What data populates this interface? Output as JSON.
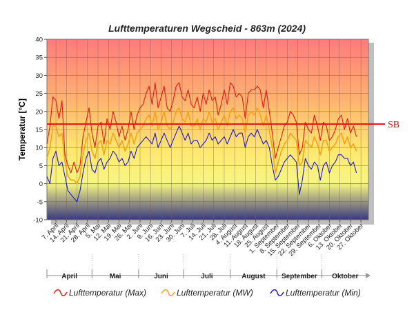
{
  "chart_data": {
    "type": "line",
    "title": "Lufttemperaturen Wegscheid - 863m (2024)",
    "ylabel": "Temperatur [°C]",
    "ylim": [
      -10,
      40
    ],
    "yticks": [
      -10,
      -5,
      0,
      5,
      10,
      15,
      20,
      25,
      30,
      35,
      40
    ],
    "x_start": "2024-04-01",
    "x_end": "2024-10-31",
    "x_tick_labels": [
      "7. April",
      "14. April",
      "21. April",
      "28. April",
      "5. Mai",
      "12. Mai",
      "19. Mai",
      "26. Mai",
      "2. Juni",
      "9. Juni",
      "16. Juni",
      "23. Juni",
      "30. Juni",
      "7. Juli",
      "14. Juli",
      "21. Juli",
      "28. Juli",
      "4. August",
      "11. August",
      "18. August",
      "25. August",
      "1. September",
      "8. September",
      "15. September",
      "22. September",
      "29. September",
      "6. Oktober",
      "13. Oktober",
      "20. Oktober",
      "27. Oktober"
    ],
    "months": [
      "April",
      "Mai",
      "Juni",
      "Juli",
      "August",
      "September",
      "Oktober"
    ],
    "reference_line": {
      "label": "SB",
      "value": 16.5,
      "color": "#e01010"
    },
    "background_gradient": [
      "#ff7b7b",
      "#ffb070",
      "#ffe870",
      "#fafa80",
      "#383880"
    ],
    "grid": true,
    "series": [
      {
        "name": "Lufttemperatur (Max)",
        "color": "#e41a1a",
        "values": [
          [
            0,
            11
          ],
          [
            2,
            16
          ],
          [
            4,
            24
          ],
          [
            6,
            23
          ],
          [
            8,
            18
          ],
          [
            10,
            23
          ],
          [
            12,
            8
          ],
          [
            14,
            5
          ],
          [
            16,
            3
          ],
          [
            18,
            6
          ],
          [
            20,
            3
          ],
          [
            22,
            5
          ],
          [
            24,
            13
          ],
          [
            26,
            17
          ],
          [
            28,
            21
          ],
          [
            30,
            14
          ],
          [
            32,
            10
          ],
          [
            34,
            16
          ],
          [
            36,
            17
          ],
          [
            38,
            11
          ],
          [
            40,
            18
          ],
          [
            42,
            15
          ],
          [
            44,
            20
          ],
          [
            46,
            17
          ],
          [
            48,
            13
          ],
          [
            50,
            16
          ],
          [
            52,
            12
          ],
          [
            54,
            15
          ],
          [
            56,
            20
          ],
          [
            58,
            15
          ],
          [
            60,
            19
          ],
          [
            62,
            21
          ],
          [
            64,
            22
          ],
          [
            66,
            25
          ],
          [
            68,
            27
          ],
          [
            70,
            22
          ],
          [
            72,
            28
          ],
          [
            74,
            21
          ],
          [
            76,
            24
          ],
          [
            78,
            27
          ],
          [
            80,
            21
          ],
          [
            82,
            20
          ],
          [
            84,
            23
          ],
          [
            86,
            27
          ],
          [
            88,
            28
          ],
          [
            90,
            24
          ],
          [
            92,
            23
          ],
          [
            94,
            26
          ],
          [
            96,
            22
          ],
          [
            98,
            21
          ],
          [
            100,
            24
          ],
          [
            102,
            20
          ],
          [
            104,
            25
          ],
          [
            106,
            22
          ],
          [
            108,
            26
          ],
          [
            110,
            23
          ],
          [
            112,
            24
          ],
          [
            114,
            19
          ],
          [
            116,
            22
          ],
          [
            118,
            26
          ],
          [
            120,
            22
          ],
          [
            122,
            28
          ],
          [
            124,
            27
          ],
          [
            126,
            24
          ],
          [
            128,
            25
          ],
          [
            130,
            24
          ],
          [
            132,
            18
          ],
          [
            134,
            25
          ],
          [
            136,
            26
          ],
          [
            138,
            26
          ],
          [
            140,
            27
          ],
          [
            142,
            26
          ],
          [
            144,
            21
          ],
          [
            146,
            26
          ],
          [
            148,
            20
          ],
          [
            150,
            14
          ],
          [
            152,
            7
          ],
          [
            154,
            10
          ],
          [
            156,
            13
          ],
          [
            158,
            16
          ],
          [
            160,
            17
          ],
          [
            162,
            20
          ],
          [
            164,
            19
          ],
          [
            166,
            17
          ],
          [
            168,
            8
          ],
          [
            170,
            10
          ],
          [
            172,
            17
          ],
          [
            174,
            15
          ],
          [
            176,
            14
          ],
          [
            178,
            19
          ],
          [
            180,
            16
          ],
          [
            182,
            12
          ],
          [
            184,
            17
          ],
          [
            186,
            16
          ],
          [
            188,
            12
          ],
          [
            190,
            13
          ],
          [
            192,
            15
          ],
          [
            194,
            18
          ],
          [
            196,
            19
          ],
          [
            198,
            15
          ],
          [
            200,
            18
          ],
          [
            202,
            14
          ],
          [
            204,
            16
          ],
          [
            206,
            13
          ]
        ]
      },
      {
        "name": "Lufttemperatur (MW)",
        "color": "#f7a21a",
        "values": [
          [
            0,
            7
          ],
          [
            2,
            10
          ],
          [
            4,
            16
          ],
          [
            6,
            16
          ],
          [
            8,
            13
          ],
          [
            10,
            14
          ],
          [
            12,
            6
          ],
          [
            14,
            2
          ],
          [
            16,
            1
          ],
          [
            18,
            1
          ],
          [
            20,
            0
          ],
          [
            22,
            2
          ],
          [
            24,
            8
          ],
          [
            26,
            12
          ],
          [
            28,
            14
          ],
          [
            30,
            9
          ],
          [
            32,
            7
          ],
          [
            34,
            11
          ],
          [
            36,
            12
          ],
          [
            38,
            8
          ],
          [
            40,
            12
          ],
          [
            42,
            11
          ],
          [
            44,
            14
          ],
          [
            46,
            12
          ],
          [
            48,
            10
          ],
          [
            50,
            12
          ],
          [
            52,
            9
          ],
          [
            54,
            11
          ],
          [
            56,
            14
          ],
          [
            58,
            11
          ],
          [
            60,
            14
          ],
          [
            62,
            15
          ],
          [
            64,
            16
          ],
          [
            66,
            18
          ],
          [
            68,
            19
          ],
          [
            70,
            16
          ],
          [
            72,
            20
          ],
          [
            74,
            15
          ],
          [
            76,
            17
          ],
          [
            78,
            20
          ],
          [
            80,
            16
          ],
          [
            82,
            15
          ],
          [
            84,
            17
          ],
          [
            86,
            20
          ],
          [
            88,
            21
          ],
          [
            90,
            18
          ],
          [
            92,
            17
          ],
          [
            94,
            20
          ],
          [
            96,
            16
          ],
          [
            98,
            16
          ],
          [
            100,
            18
          ],
          [
            102,
            15
          ],
          [
            104,
            18
          ],
          [
            106,
            17
          ],
          [
            108,
            20
          ],
          [
            110,
            17
          ],
          [
            112,
            18
          ],
          [
            114,
            15
          ],
          [
            116,
            17
          ],
          [
            118,
            19
          ],
          [
            120,
            16
          ],
          [
            122,
            20
          ],
          [
            124,
            21
          ],
          [
            126,
            18
          ],
          [
            128,
            19
          ],
          [
            130,
            18
          ],
          [
            132,
            14
          ],
          [
            134,
            19
          ],
          [
            136,
            20
          ],
          [
            138,
            19
          ],
          [
            140,
            21
          ],
          [
            142,
            19
          ],
          [
            144,
            16
          ],
          [
            146,
            19
          ],
          [
            148,
            15
          ],
          [
            150,
            10
          ],
          [
            152,
            3
          ],
          [
            154,
            6
          ],
          [
            156,
            9
          ],
          [
            158,
            11
          ],
          [
            160,
            12
          ],
          [
            162,
            14
          ],
          [
            164,
            13
          ],
          [
            166,
            12
          ],
          [
            168,
            5
          ],
          [
            170,
            6
          ],
          [
            172,
            12
          ],
          [
            174,
            11
          ],
          [
            176,
            10
          ],
          [
            178,
            13
          ],
          [
            180,
            11
          ],
          [
            182,
            8
          ],
          [
            184,
            12
          ],
          [
            186,
            12
          ],
          [
            188,
            9
          ],
          [
            190,
            10
          ],
          [
            192,
            11
          ],
          [
            194,
            13
          ],
          [
            196,
            14
          ],
          [
            198,
            11
          ],
          [
            200,
            13
          ],
          [
            202,
            10
          ],
          [
            204,
            11
          ],
          [
            206,
            9
          ]
        ]
      },
      {
        "name": "Lufttemperatur (Min)",
        "color": "#1a1ad0",
        "values": [
          [
            0,
            2
          ],
          [
            2,
            0
          ],
          [
            4,
            7
          ],
          [
            6,
            9
          ],
          [
            8,
            5
          ],
          [
            10,
            6
          ],
          [
            12,
            2
          ],
          [
            14,
            -2
          ],
          [
            16,
            -3
          ],
          [
            18,
            -4
          ],
          [
            20,
            -5
          ],
          [
            22,
            -2
          ],
          [
            24,
            3
          ],
          [
            26,
            7
          ],
          [
            28,
            9
          ],
          [
            30,
            4
          ],
          [
            32,
            3
          ],
          [
            34,
            6
          ],
          [
            36,
            7
          ],
          [
            38,
            4
          ],
          [
            40,
            6
          ],
          [
            42,
            7
          ],
          [
            44,
            9
          ],
          [
            46,
            8
          ],
          [
            48,
            6
          ],
          [
            50,
            7
          ],
          [
            52,
            5
          ],
          [
            54,
            6
          ],
          [
            56,
            9
          ],
          [
            58,
            7
          ],
          [
            60,
            10
          ],
          [
            62,
            11
          ],
          [
            64,
            12
          ],
          [
            66,
            13
          ],
          [
            68,
            12
          ],
          [
            70,
            11
          ],
          [
            72,
            14
          ],
          [
            74,
            10
          ],
          [
            76,
            12
          ],
          [
            78,
            14
          ],
          [
            80,
            12
          ],
          [
            82,
            10
          ],
          [
            84,
            12
          ],
          [
            86,
            14
          ],
          [
            88,
            16
          ],
          [
            90,
            14
          ],
          [
            92,
            12
          ],
          [
            94,
            14
          ],
          [
            96,
            11
          ],
          [
            98,
            12
          ],
          [
            100,
            12
          ],
          [
            102,
            10
          ],
          [
            104,
            11
          ],
          [
            106,
            12
          ],
          [
            108,
            14
          ],
          [
            110,
            12
          ],
          [
            112,
            13
          ],
          [
            114,
            11
          ],
          [
            116,
            12
          ],
          [
            118,
            13
          ],
          [
            120,
            11
          ],
          [
            122,
            13
          ],
          [
            124,
            15
          ],
          [
            126,
            13
          ],
          [
            128,
            14
          ],
          [
            130,
            14
          ],
          [
            132,
            10
          ],
          [
            134,
            13
          ],
          [
            136,
            14
          ],
          [
            138,
            13
          ],
          [
            140,
            15
          ],
          [
            142,
            13
          ],
          [
            144,
            11
          ],
          [
            146,
            12
          ],
          [
            148,
            10
          ],
          [
            150,
            5
          ],
          [
            152,
            1
          ],
          [
            154,
            2
          ],
          [
            156,
            4
          ],
          [
            158,
            6
          ],
          [
            160,
            7
          ],
          [
            162,
            8
          ],
          [
            164,
            7
          ],
          [
            166,
            6
          ],
          [
            168,
            -3
          ],
          [
            170,
            1
          ],
          [
            172,
            7
          ],
          [
            174,
            5
          ],
          [
            176,
            4
          ],
          [
            178,
            6
          ],
          [
            180,
            5
          ],
          [
            182,
            1
          ],
          [
            184,
            5
          ],
          [
            186,
            6
          ],
          [
            188,
            3
          ],
          [
            190,
            5
          ],
          [
            192,
            6
          ],
          [
            194,
            8
          ],
          [
            196,
            8
          ],
          [
            198,
            7
          ],
          [
            200,
            7
          ],
          [
            202,
            5
          ],
          [
            204,
            6
          ],
          [
            206,
            3
          ]
        ]
      }
    ]
  }
}
